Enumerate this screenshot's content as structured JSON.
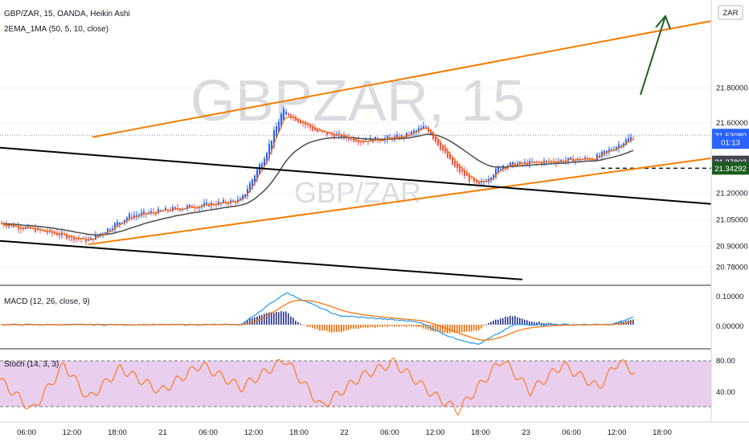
{
  "header": {
    "title": "GBP/ZAR, 15, OANDA, Heikin Ashi",
    "indicator": "2EMA_1MA (50, 5, 10, close)",
    "currency_button": "ZAR"
  },
  "watermark": {
    "big": "GBPZAR, 15",
    "small": "GBP/ZAR"
  },
  "colors": {
    "up": "#2962ff",
    "down": "#ef5350",
    "ema_fast": "#ff6d00",
    "ma_slow": "#555555",
    "channel_orange": "#f57c00",
    "channel_black": "#000000",
    "arrow": "#1b5e20",
    "macd": "#2196f3",
    "signal": "#ff6d00",
    "stoch_band": "#e1bee7",
    "stoch_line": "#ff6d00"
  },
  "price_axis": {
    "ticks": [
      "21.80000",
      "21.60000",
      "21.20000",
      "21.05000",
      "20.90000",
      "20.78000"
    ],
    "tags": [
      {
        "label": "21.53080",
        "bg": "#2962ff",
        "value": 21.5308
      },
      {
        "label": "01:13",
        "bg": "#2962ff",
        "value": 21.49
      },
      {
        "label": "21.37803",
        "bg": "#434651",
        "value": 21.378
      },
      {
        "label": "21.34292",
        "bg": "#1b5e20",
        "value": 21.3429
      }
    ]
  },
  "macd": {
    "label": "MACD (12, 26, close, 9)",
    "ticks": [
      "0.10000",
      "0.00000"
    ]
  },
  "stoch": {
    "label": "Stoch (14, 3, 3)",
    "ticks": [
      "80.00",
      "40.00"
    ]
  },
  "time_axis": [
    "06:00",
    "12:00",
    "18:00",
    "21",
    "06:00",
    "12:00",
    "18:00",
    "22",
    "06:00",
    "12:00",
    "18:00",
    "23",
    "06:00",
    "12:00",
    "18:00"
  ],
  "chart_data": {
    "type": "candlestick",
    "symbol": "GBP/ZAR",
    "interval": "15",
    "ylim": [
      20.7,
      22.3
    ],
    "keypoints": [
      {
        "t": 0,
        "price": 21.03
      },
      {
        "t": 70,
        "price": 20.97
      },
      {
        "t": 110,
        "price": 20.93
      },
      {
        "t": 160,
        "price": 21.07
      },
      {
        "t": 230,
        "price": 21.12
      },
      {
        "t": 300,
        "price": 21.16
      },
      {
        "t": 330,
        "price": 21.42
      },
      {
        "t": 352,
        "price": 21.67
      },
      {
        "t": 395,
        "price": 21.55
      },
      {
        "t": 450,
        "price": 21.5
      },
      {
        "t": 500,
        "price": 21.52
      },
      {
        "t": 530,
        "price": 21.58
      },
      {
        "t": 565,
        "price": 21.35
      },
      {
        "t": 595,
        "price": 21.24
      },
      {
        "t": 625,
        "price": 21.36
      },
      {
        "t": 680,
        "price": 21.38
      },
      {
        "t": 740,
        "price": 21.4
      },
      {
        "t": 760,
        "price": 21.45
      },
      {
        "t": 790,
        "price": 21.53
      }
    ],
    "channel_lines": [
      {
        "name": "upper_orange",
        "points": [
          [
            115,
            21.52
          ],
          [
            885,
            22.18
          ]
        ]
      },
      {
        "name": "lower_orange",
        "points": [
          [
            110,
            20.91
          ],
          [
            885,
            21.4
          ]
        ]
      },
      {
        "name": "upper_black",
        "points": [
          [
            0,
            21.46
          ],
          [
            885,
            21.14
          ]
        ]
      },
      {
        "name": "lower_black",
        "points": [
          [
            0,
            20.93
          ],
          [
            650,
            20.71
          ]
        ]
      }
    ],
    "macd_keypoints": [
      {
        "t": 0,
        "v": 0.0
      },
      {
        "t": 300,
        "v": 0.0
      },
      {
        "t": 356,
        "v": 0.105
      },
      {
        "t": 420,
        "v": 0.03
      },
      {
        "t": 520,
        "v": 0.01
      },
      {
        "t": 560,
        "v": -0.04
      },
      {
        "t": 595,
        "v": -0.065
      },
      {
        "t": 640,
        "v": 0.0
      },
      {
        "t": 760,
        "v": 0.0
      },
      {
        "t": 790,
        "v": 0.025
      }
    ],
    "stoch_keypoints": [
      {
        "t": 0,
        "v": 55
      },
      {
        "t": 40,
        "v": 15
      },
      {
        "t": 80,
        "v": 75
      },
      {
        "t": 110,
        "v": 30
      },
      {
        "t": 150,
        "v": 70
      },
      {
        "t": 200,
        "v": 40
      },
      {
        "t": 250,
        "v": 75
      },
      {
        "t": 300,
        "v": 45
      },
      {
        "t": 355,
        "v": 82
      },
      {
        "t": 400,
        "v": 20
      },
      {
        "t": 450,
        "v": 60
      },
      {
        "t": 490,
        "v": 78
      },
      {
        "t": 540,
        "v": 35
      },
      {
        "t": 570,
        "v": 15
      },
      {
        "t": 625,
        "v": 82
      },
      {
        "t": 660,
        "v": 40
      },
      {
        "t": 700,
        "v": 75
      },
      {
        "t": 745,
        "v": 45
      },
      {
        "t": 770,
        "v": 80
      },
      {
        "t": 790,
        "v": 65
      }
    ]
  }
}
